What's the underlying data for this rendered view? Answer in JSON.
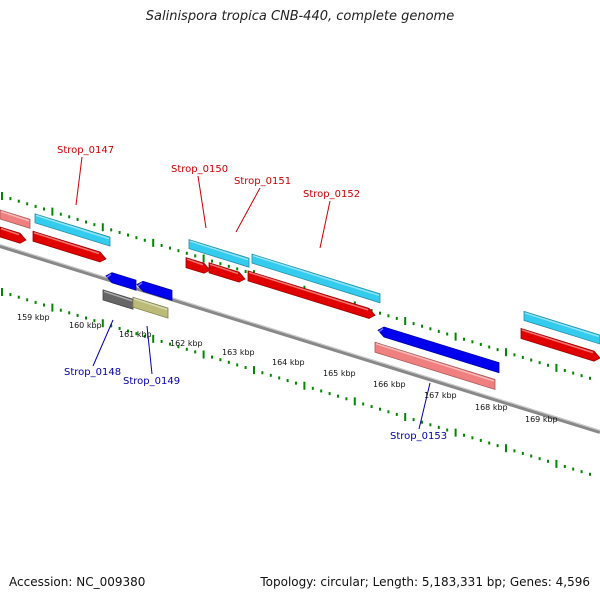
{
  "header": {
    "title": "Salinispora tropica CNB-440, complete genome"
  },
  "footer": {
    "accession": "Accession: NC_009380",
    "summary": "Topology: circular; Length: 5,183,331 bp; Genes: 4,596"
  },
  "map": {
    "tick_labels": [
      "159 kbp",
      "160 kbp",
      "161 kbp",
      "162 kbp",
      "163 kbp",
      "164 kbp",
      "165 kbp",
      "166 kbp",
      "167 kbp",
      "168 kbp",
      "169 kbp"
    ],
    "gene_labels": [
      {
        "name": "Strop_0147",
        "strand": "forward"
      },
      {
        "name": "Strop_0148",
        "strand": "reverse"
      },
      {
        "name": "Strop_0149",
        "strand": "reverse"
      },
      {
        "name": "Strop_0150",
        "strand": "forward"
      },
      {
        "name": "Strop_0151",
        "strand": "forward"
      },
      {
        "name": "Strop_0152",
        "strand": "forward"
      },
      {
        "name": "Strop_0153",
        "strand": "reverse"
      }
    ],
    "colors": {
      "forward_label": "#cc0000",
      "reverse_label": "#0000aa",
      "cds_forward": "#e00000",
      "gene_forward": "#33ccee",
      "cds_reverse": "#0000ee",
      "gene_reverse": "#f08080",
      "tick": "#008800",
      "backbone": "#888888"
    }
  }
}
